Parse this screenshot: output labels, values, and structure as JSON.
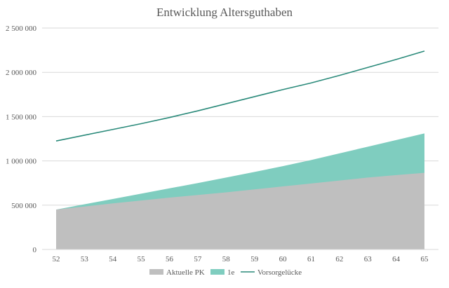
{
  "colors": {
    "aktuelle_pk": "#bfbfbf",
    "one_e": "#7fcdbf",
    "vorsorgeluecke": "#2a8a7a",
    "grid": "#d9d9d9",
    "text": "#595959"
  },
  "chart_data": {
    "type": "area",
    "title": "Entwicklung Altersguthaben",
    "xlabel": "",
    "ylabel": "",
    "x": [
      52,
      53,
      54,
      55,
      56,
      57,
      58,
      59,
      60,
      61,
      62,
      63,
      64,
      65
    ],
    "ylim": [
      0,
      2500000
    ],
    "yticks": [
      0,
      500000,
      1000000,
      1500000,
      2000000,
      2500000
    ],
    "ytick_labels": [
      "0",
      "500 000",
      "1 000 000",
      "1 500 000",
      "2 000 000",
      "2 500 000"
    ],
    "grid": true,
    "legend_position": "bottom",
    "series": [
      {
        "name": "Aktuelle PK",
        "kind": "area",
        "values": [
          450000,
          485000,
          520000,
          553000,
          585000,
          615000,
          645000,
          678000,
          712000,
          745000,
          778000,
          812000,
          840000,
          865000
        ]
      },
      {
        "name": "1e",
        "kind": "area",
        "values": [
          450000,
          510000,
          570000,
          630000,
          690000,
          750000,
          812000,
          875000,
          940000,
          1010000,
          1085000,
          1160000,
          1235000,
          1310000
        ]
      },
      {
        "name": "Vorsorgelücke",
        "kind": "line",
        "values": [
          1225000,
          1290000,
          1355000,
          1420000,
          1490000,
          1565000,
          1645000,
          1725000,
          1805000,
          1880000,
          1965000,
          2055000,
          2145000,
          2240000
        ]
      }
    ]
  }
}
